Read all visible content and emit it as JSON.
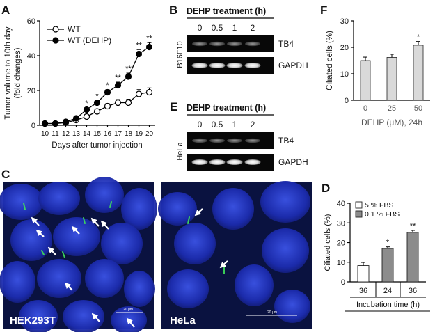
{
  "panels": {
    "A": "A",
    "B": "B",
    "C": "C",
    "D": "D",
    "E": "E",
    "F": "F"
  },
  "chart_data": [
    {
      "id": "A",
      "type": "line",
      "ylabel": "Tumor volume to 10th day\n(fold changes)",
      "xlabel": "Days after tumor injection",
      "x": [
        10,
        11,
        12,
        13,
        14,
        15,
        16,
        17,
        18,
        19,
        20
      ],
      "ylim": [
        0,
        60
      ],
      "yticks": [
        0,
        20,
        40,
        60
      ],
      "legend_placement": "top-left",
      "series": [
        {
          "name": "WT",
          "marker": "open",
          "values": [
            1,
            1,
            1.5,
            3,
            5,
            8,
            11,
            13,
            13,
            18,
            19
          ],
          "err": [
            0.5,
            0.5,
            0.6,
            0.8,
            1,
            1.2,
            1.5,
            1.8,
            2,
            2.5,
            2.5
          ]
        },
        {
          "name": "WT (DEHP)",
          "marker": "filled",
          "values": [
            1,
            1,
            2,
            4,
            9,
            13,
            19,
            23,
            28,
            41,
            45
          ],
          "err": [
            0.5,
            0.5,
            0.6,
            0.8,
            1,
            1.2,
            1.5,
            1.8,
            2,
            2.5,
            2.5
          ]
        }
      ],
      "annotations": [
        {
          "x": 14,
          "text": "*"
        },
        {
          "x": 15,
          "text": "*"
        },
        {
          "x": 16,
          "text": "*"
        },
        {
          "x": 17,
          "text": "**"
        },
        {
          "x": 18,
          "text": "**"
        },
        {
          "x": 19,
          "text": "**"
        },
        {
          "x": 20,
          "text": "**"
        }
      ]
    },
    {
      "id": "F",
      "type": "bar",
      "ylabel": "Ciliated cells (%)",
      "xlabel": "DEHP (μM), 24h",
      "categories": [
        "0",
        "25",
        "50"
      ],
      "values": [
        15,
        16.2,
        20.8
      ],
      "err": [
        1.3,
        1.2,
        1.4
      ],
      "ylim": [
        0,
        30
      ],
      "yticks": [
        0,
        10,
        20,
        30
      ],
      "annotations": [
        {
          "category": "50",
          "text": "*"
        }
      ]
    },
    {
      "id": "D",
      "type": "bar",
      "ylabel": "Ciliated cells (%)",
      "xlabel": "Incubation time (h)",
      "categories": [
        "36",
        "24",
        "36"
      ],
      "values": [
        8.3,
        17,
        25.2
      ],
      "err": [
        1.6,
        0.8,
        1
      ],
      "groups": [
        "5 % FBS",
        "0.1 % FBS",
        "0.1 % FBS"
      ],
      "ylim": [
        0,
        40
      ],
      "yticks": [
        0,
        10,
        20,
        30,
        40
      ],
      "legend": [
        "5 % FBS",
        "0.1 % FBS"
      ],
      "legend_placement": "top-left",
      "annotations": [
        {
          "index": 1,
          "text": "*"
        },
        {
          "index": 2,
          "text": "**"
        }
      ]
    }
  ],
  "gels": [
    {
      "id": "B",
      "title": "DEHP treatment (h)",
      "lanes": [
        "0",
        "0.5",
        "1",
        "2"
      ],
      "cell_line": "B16F10",
      "bands": [
        "TB4",
        "GAPDH"
      ]
    },
    {
      "id": "E",
      "title": "DEHP treatment (h)",
      "lanes": [
        "0",
        "0.5",
        "1",
        "2"
      ],
      "cell_line": "HeLa",
      "bands": [
        "TB4",
        "GAPDH"
      ]
    }
  ],
  "micrographs": [
    {
      "label": "HEK293T",
      "scale": "20 μm"
    },
    {
      "label": "HeLa",
      "scale": "20 μm"
    }
  ]
}
